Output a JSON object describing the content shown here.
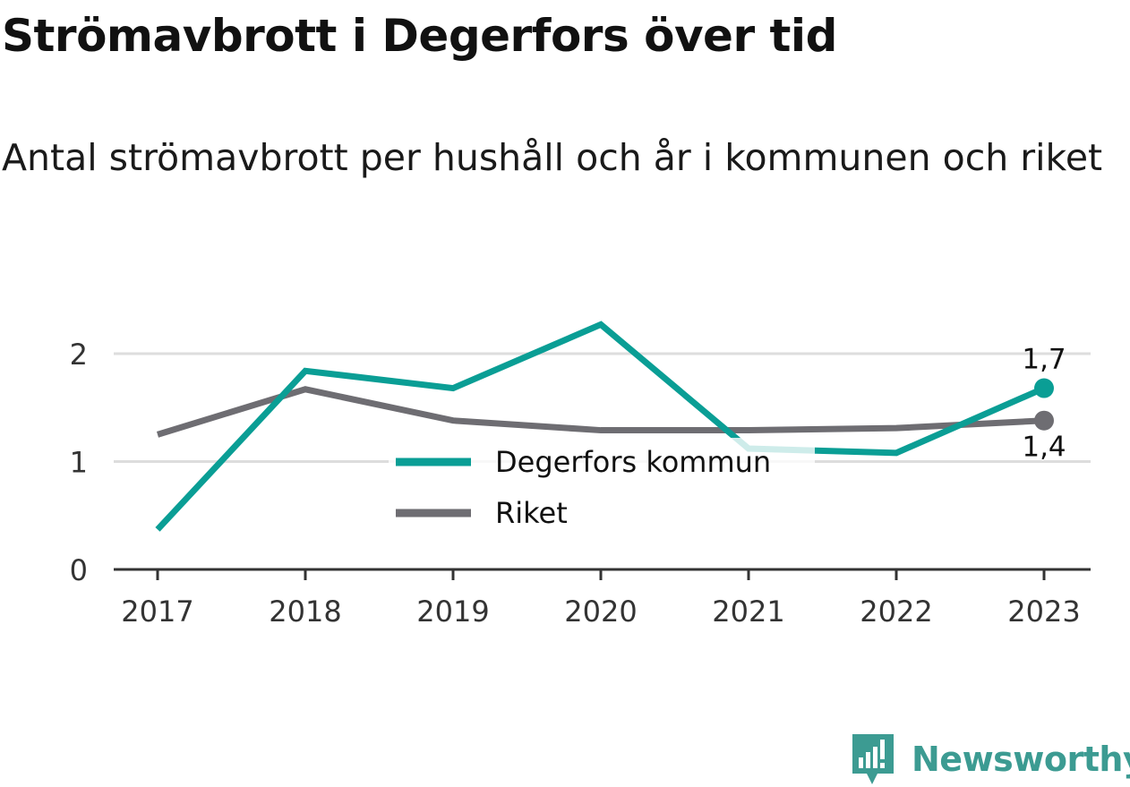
{
  "colors": {
    "series_primary": "#0a9e95",
    "series_secondary": "#6e6d72",
    "grid": "#dddddd",
    "axis": "#333333",
    "brand": "#3c9b92"
  },
  "chart_data": {
    "type": "line",
    "title": "Strömavbrott i Degerfors över tid",
    "subtitle": "Antal strömavbrott per hushåll och år i kommunen och riket",
    "x": [
      "2017",
      "2018",
      "2019",
      "2020",
      "2021",
      "2022",
      "2023"
    ],
    "series": [
      {
        "name": "Degerfors kommun",
        "values": [
          0.37,
          1.84,
          1.68,
          2.27,
          1.12,
          1.08,
          1.68
        ],
        "end_label": "1,7"
      },
      {
        "name": "Riket",
        "values": [
          1.25,
          1.67,
          1.38,
          1.29,
          1.29,
          1.31,
          1.38
        ],
        "end_label": "1,4"
      }
    ],
    "ylim": [
      0,
      2.3
    ],
    "yticks": [
      0,
      1,
      2
    ],
    "ytick_labels": [
      "0",
      "1",
      "2"
    ],
    "grid": true,
    "legend_position": "center"
  },
  "brand": {
    "name": "Newsworthy",
    "logo_icon": "newsworthy-logo-icon"
  }
}
